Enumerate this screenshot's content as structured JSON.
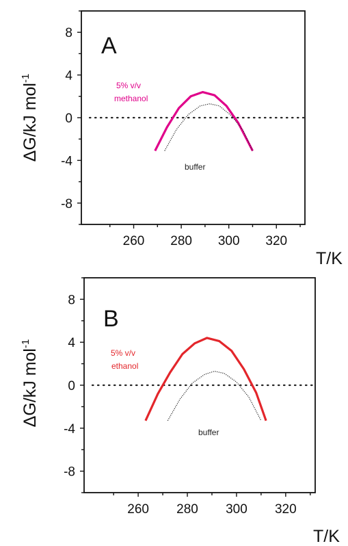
{
  "chart_data": [
    {
      "type": "line",
      "panel_label": "A",
      "xlabel": "T/K",
      "ylabel": "ΔG/kJ mol⁻¹",
      "xlim": [
        238,
        332
      ],
      "ylim": [
        -10,
        10
      ],
      "xticks": [
        260,
        280,
        300,
        320
      ],
      "yticks": [
        8,
        4,
        0,
        -4,
        -8
      ],
      "grid": false,
      "legend": "none",
      "reference_line": {
        "y": 0,
        "style": "dotted"
      },
      "series": [
        {
          "name": "5% v/v methanol",
          "color": "#e0008a",
          "style": "solid",
          "x": [
            269,
            274,
            279,
            284,
            289,
            294,
            299,
            304,
            310
          ],
          "y": [
            -3.1,
            -0.9,
            0.9,
            2.0,
            2.4,
            2.1,
            1.1,
            -0.5,
            -3.1
          ]
        },
        {
          "name": "buffer",
          "color": "#222222",
          "style": "dotted",
          "x": [
            273,
            278,
            283,
            288,
            292,
            296,
            301,
            306,
            310
          ],
          "y": [
            -3.1,
            -1.1,
            0.3,
            1.1,
            1.3,
            1.1,
            0.2,
            -1.2,
            -3.1
          ]
        }
      ],
      "annotations": [
        {
          "text": "5% v/v",
          "color": "#e0008a"
        },
        {
          "text": "methanol",
          "color": "#e0008a"
        },
        {
          "text": "buffer",
          "color": "#222222"
        }
      ]
    },
    {
      "type": "line",
      "panel_label": "B",
      "xlabel": "T/K",
      "ylabel": "ΔG/kJ mol⁻¹",
      "xlim": [
        238,
        332
      ],
      "ylim": [
        -10,
        10
      ],
      "xticks": [
        260,
        280,
        300,
        320
      ],
      "yticks": [
        8,
        4,
        0,
        -4,
        -8
      ],
      "grid": false,
      "legend": "none",
      "reference_line": {
        "y": 0,
        "style": "dotted"
      },
      "series": [
        {
          "name": "5% v/v ethanol",
          "color": "#e3262b",
          "style": "solid",
          "x": [
            263,
            268,
            273,
            278,
            283,
            288,
            293,
            298,
            303,
            308,
            312
          ],
          "y": [
            -3.3,
            -0.8,
            1.2,
            2.9,
            3.9,
            4.4,
            4.1,
            3.2,
            1.5,
            -0.7,
            -3.3
          ]
        },
        {
          "name": "buffer",
          "color": "#222222",
          "style": "dotted",
          "x": [
            272,
            277,
            282,
            287,
            291,
            295,
            300,
            305,
            310
          ],
          "y": [
            -3.3,
            -1.3,
            0.2,
            1.0,
            1.3,
            1.1,
            0.3,
            -1.1,
            -3.3
          ]
        }
      ],
      "annotations": [
        {
          "text": "5% v/v",
          "color": "#e3262b"
        },
        {
          "text": "ethanol",
          "color": "#e3262b"
        },
        {
          "text": "buffer",
          "color": "#222222"
        }
      ]
    }
  ]
}
